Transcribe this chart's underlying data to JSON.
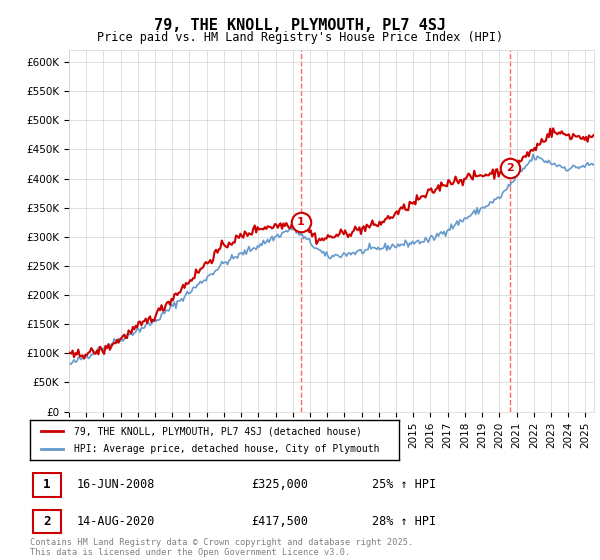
{
  "title": "79, THE KNOLL, PLYMOUTH, PL7 4SJ",
  "subtitle": "Price paid vs. HM Land Registry's House Price Index (HPI)",
  "legend_line1": "79, THE KNOLL, PLYMOUTH, PL7 4SJ (detached house)",
  "legend_line2": "HPI: Average price, detached house, City of Plymouth",
  "annotation1_label": "1",
  "annotation1_date": "16-JUN-2008",
  "annotation1_price": "£325,000",
  "annotation1_hpi": "25% ↑ HPI",
  "annotation2_label": "2",
  "annotation2_date": "14-AUG-2020",
  "annotation2_price": "£417,500",
  "annotation2_hpi": "28% ↑ HPI",
  "footer": "Contains HM Land Registry data © Crown copyright and database right 2025.\nThis data is licensed under the Open Government Licence v3.0.",
  "red_color": "#cc0000",
  "blue_color": "#6699cc",
  "vline_color": "#ff6666",
  "ylim_min": 0,
  "ylim_max": 620000,
  "year_start": 1995,
  "year_end": 2025
}
